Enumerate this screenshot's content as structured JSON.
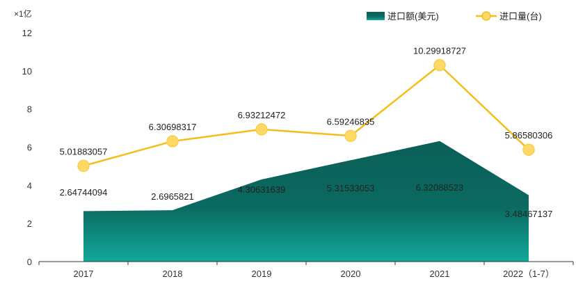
{
  "chart_data": {
    "type": "area",
    "unit_label": "×1亿",
    "categories": [
      "2017",
      "2018",
      "2019",
      "2020",
      "2021",
      "2022（1-7）"
    ],
    "series": [
      {
        "name": "进口额(美元)",
        "type": "area",
        "values": [
          2.64744094,
          2.6965821,
          4.30631639,
          5.31533053,
          6.32088523,
          3.48467137
        ],
        "labels": [
          "2.64744094",
          "2.6965821",
          "4.30631639",
          "5.31533053",
          "6.32088523",
          "3.48467137"
        ],
        "color_top": "#0b5f57",
        "color_bottom": "#12a99b"
      },
      {
        "name": "进口量(台)",
        "type": "line",
        "values": [
          5.01883057,
          6.30698317,
          6.93212472,
          6.59246835,
          10.29918727,
          5.86580306
        ],
        "labels": [
          "5.01883057",
          "6.30698317",
          "6.93212472",
          "6.59246835",
          "10.29918727",
          "5.86580306"
        ],
        "color": "#f5bd1c",
        "marker_color": "#ffd966"
      }
    ],
    "y_ticks": [
      "0",
      "2",
      "4",
      "6",
      "8",
      "10",
      "12"
    ],
    "ylim": [
      0,
      12
    ],
    "grid": false,
    "legend_position": "top-right"
  }
}
